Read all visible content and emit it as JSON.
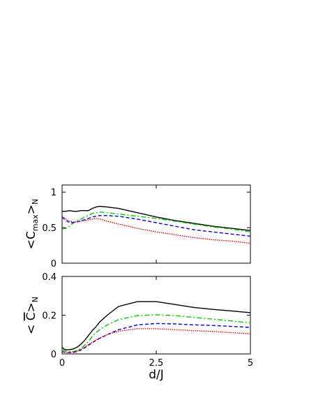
{
  "chart_data": [
    {
      "type": "line",
      "panel": "top",
      "ylabel": {
        "prefix": "<C",
        "sub": "max",
        "suffix": ">",
        "sub2": "N"
      },
      "xlabel": "",
      "xlim": [
        0,
        5
      ],
      "ylim": [
        0,
        1.1
      ],
      "xticks": [
        0,
        2.5,
        5
      ],
      "xtick_labels": [
        "",
        "",
        ""
      ],
      "yticks": [
        0,
        0.5,
        1
      ],
      "ytick_labels": [
        "0",
        "0.5",
        "1"
      ],
      "grid": false,
      "series": [
        {
          "color": "#000000",
          "dash": "solid",
          "x": [
            0,
            0.1,
            0.2,
            0.3,
            0.4,
            0.5,
            0.6,
            0.7,
            0.8,
            0.9,
            1.0,
            1.2,
            1.5,
            2.0,
            2.5,
            3.0,
            3.5,
            4.0,
            4.5,
            5.0
          ],
          "y": [
            0.73,
            0.73,
            0.74,
            0.73,
            0.73,
            0.74,
            0.74,
            0.74,
            0.77,
            0.79,
            0.8,
            0.79,
            0.77,
            0.71,
            0.65,
            0.6,
            0.56,
            0.52,
            0.49,
            0.46
          ]
        },
        {
          "color": "#00cc00",
          "dash": "dashdot",
          "x": [
            0,
            0.1,
            0.2,
            0.3,
            0.4,
            0.5,
            0.6,
            0.7,
            0.8,
            0.9,
            1.0,
            1.2,
            1.5,
            2.0,
            2.5,
            3.0,
            3.5,
            4.0,
            4.5,
            5.0
          ],
          "y": [
            0.48,
            0.49,
            0.52,
            0.57,
            0.6,
            0.62,
            0.65,
            0.67,
            0.7,
            0.71,
            0.72,
            0.71,
            0.69,
            0.66,
            0.63,
            0.59,
            0.55,
            0.51,
            0.48,
            0.44
          ]
        },
        {
          "color": "#0000dd",
          "dash": "dashed",
          "x": [
            0,
            0.1,
            0.2,
            0.3,
            0.4,
            0.5,
            0.6,
            0.7,
            0.8,
            0.9,
            1.0,
            1.2,
            1.5,
            2.0,
            2.5,
            3.0,
            3.5,
            4.0,
            4.5,
            5.0
          ],
          "y": [
            0.65,
            0.6,
            0.57,
            0.57,
            0.58,
            0.6,
            0.61,
            0.63,
            0.65,
            0.66,
            0.67,
            0.67,
            0.66,
            0.62,
            0.57,
            0.52,
            0.47,
            0.44,
            0.41,
            0.38
          ]
        },
        {
          "color": "#ee0000",
          "dash": "dotted",
          "x": [
            0,
            0.1,
            0.2,
            0.3,
            0.4,
            0.5,
            0.6,
            0.7,
            0.8,
            0.9,
            1.0,
            1.2,
            1.5,
            2.0,
            2.5,
            3.0,
            3.5,
            4.0,
            4.5,
            5.0
          ],
          "y": [
            0.66,
            0.62,
            0.59,
            0.58,
            0.58,
            0.59,
            0.6,
            0.61,
            0.62,
            0.63,
            0.62,
            0.59,
            0.55,
            0.49,
            0.44,
            0.4,
            0.36,
            0.33,
            0.31,
            0.28
          ]
        }
      ]
    },
    {
      "type": "line",
      "panel": "bottom",
      "ylabel": {
        "prefix": "< ",
        "bar": "C",
        "suffix": ">",
        "sub2": "N"
      },
      "xlabel": "d/J",
      "xlim": [
        0,
        5
      ],
      "ylim": [
        0,
        0.4
      ],
      "xticks": [
        0,
        2.5,
        5
      ],
      "xtick_labels": [
        "0",
        "2.5",
        "5"
      ],
      "yticks": [
        0,
        0.2,
        0.4
      ],
      "ytick_labels": [
        "0",
        "0.2",
        "0.4"
      ],
      "grid": false,
      "series": [
        {
          "color": "#000000",
          "dash": "solid",
          "x": [
            0,
            0.05,
            0.1,
            0.2,
            0.3,
            0.4,
            0.5,
            0.6,
            0.7,
            0.8,
            0.9,
            1.0,
            1.2,
            1.5,
            2.0,
            2.5,
            3.0,
            3.5,
            4.0,
            4.5,
            5.0
          ],
          "y": [
            0.035,
            0.025,
            0.022,
            0.022,
            0.026,
            0.035,
            0.05,
            0.07,
            0.095,
            0.12,
            0.14,
            0.165,
            0.2,
            0.245,
            0.27,
            0.27,
            0.255,
            0.24,
            0.23,
            0.222,
            0.213
          ]
        },
        {
          "color": "#00cc00",
          "dash": "dashdot",
          "x": [
            0,
            0.1,
            0.2,
            0.3,
            0.4,
            0.5,
            0.6,
            0.7,
            0.8,
            0.9,
            1.0,
            1.2,
            1.5,
            2.0,
            2.5,
            3.0,
            3.5,
            4.0,
            4.5,
            5.0
          ],
          "y": [
            0.02,
            0.015,
            0.012,
            0.013,
            0.018,
            0.028,
            0.045,
            0.065,
            0.09,
            0.11,
            0.125,
            0.15,
            0.177,
            0.198,
            0.202,
            0.198,
            0.188,
            0.18,
            0.17,
            0.16
          ]
        },
        {
          "color": "#0000dd",
          "dash": "dashed",
          "x": [
            0,
            0.1,
            0.2,
            0.3,
            0.4,
            0.5,
            0.6,
            0.7,
            0.8,
            0.9,
            1.0,
            1.2,
            1.5,
            2.0,
            2.5,
            3.0,
            3.5,
            4.0,
            4.5,
            5.0
          ],
          "y": [
            0.012,
            0.008,
            0.007,
            0.008,
            0.012,
            0.02,
            0.032,
            0.045,
            0.058,
            0.07,
            0.08,
            0.1,
            0.125,
            0.15,
            0.157,
            0.155,
            0.15,
            0.147,
            0.142,
            0.137
          ]
        },
        {
          "color": "#ee0000",
          "dash": "dotted",
          "x": [
            0,
            0.1,
            0.2,
            0.3,
            0.4,
            0.5,
            0.6,
            0.7,
            0.8,
            0.9,
            1.0,
            1.2,
            1.5,
            2.0,
            2.5,
            3.0,
            3.5,
            4.0,
            4.5,
            5.0
          ],
          "y": [
            0.01,
            0.008,
            0.008,
            0.01,
            0.015,
            0.024,
            0.035,
            0.048,
            0.06,
            0.072,
            0.082,
            0.1,
            0.117,
            0.13,
            0.13,
            0.125,
            0.12,
            0.116,
            0.11,
            0.104
          ]
        }
      ]
    }
  ]
}
